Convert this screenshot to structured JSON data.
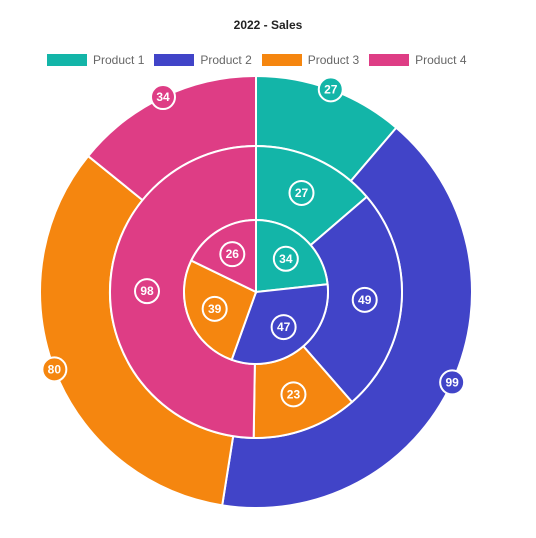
{
  "chart_data": {
    "type": "doughnut",
    "title": "2022 - Sales",
    "legend_position": "top",
    "series_names": [
      "Product 1",
      "Product 2",
      "Product 3",
      "Product 4"
    ],
    "colors": [
      "#13b5a8",
      "#4144c8",
      "#f5860f",
      "#de3d85"
    ],
    "rings": [
      {
        "ring": "outer",
        "values": [
          27,
          99,
          80,
          34
        ]
      },
      {
        "ring": "middle",
        "values": [
          27,
          49,
          23,
          98
        ]
      },
      {
        "ring": "inner",
        "values": [
          34,
          47,
          39,
          26
        ]
      }
    ]
  }
}
